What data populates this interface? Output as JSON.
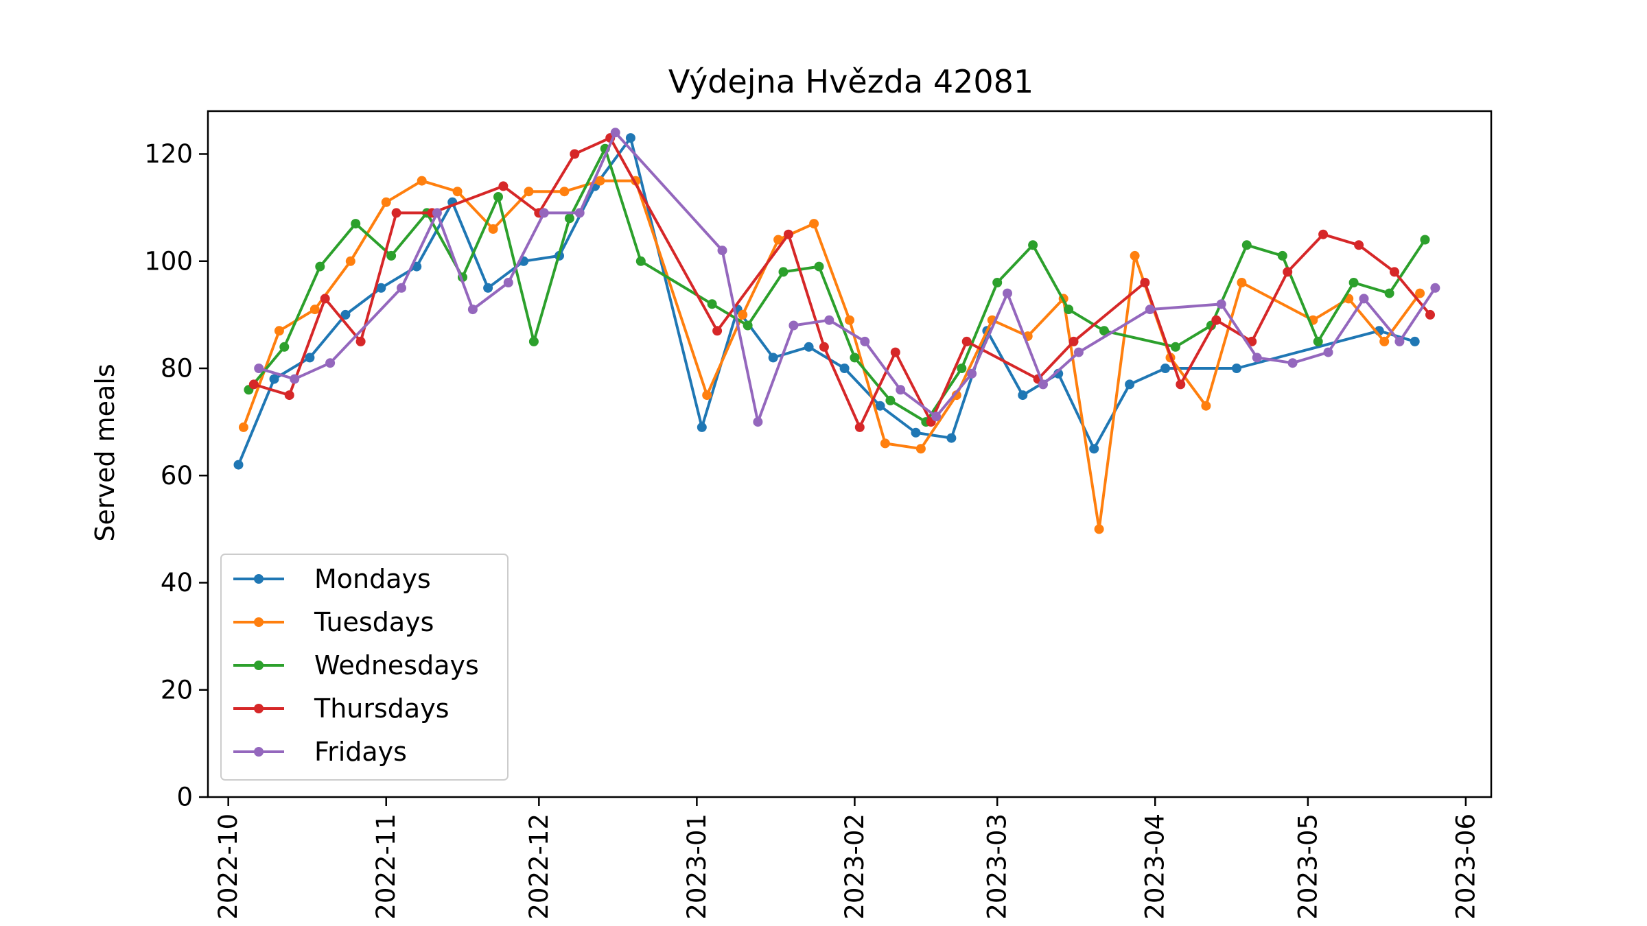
{
  "chart_data": {
    "type": "line",
    "title": "Výdejna Hvězda 42081",
    "xlabel": "",
    "ylabel": "Served meals",
    "xlim": [
      "2022-09-27",
      "2023-06-06"
    ],
    "ylim": [
      0,
      128
    ],
    "x_ticks": [
      "2022-10",
      "2022-11",
      "2022-12",
      "2023-01",
      "2023-02",
      "2023-03",
      "2023-04",
      "2023-05",
      "2023-06"
    ],
    "x_tick_dates": [
      "2022-10-01",
      "2022-11-01",
      "2022-12-01",
      "2023-01-01",
      "2023-02-01",
      "2023-03-01",
      "2023-04-01",
      "2023-05-01",
      "2023-06-01"
    ],
    "y_ticks": [
      0,
      20,
      40,
      60,
      80,
      100,
      120
    ],
    "grid": false,
    "legend_position": "lower-left",
    "series": [
      {
        "name": "Mondays",
        "color": "#1f77b4",
        "points": [
          [
            "2022-10-03",
            62
          ],
          [
            "2022-10-10",
            78
          ],
          [
            "2022-10-17",
            82
          ],
          [
            "2022-10-24",
            90
          ],
          [
            "2022-10-31",
            95
          ],
          [
            "2022-11-07",
            99
          ],
          [
            "2022-11-14",
            111
          ],
          [
            "2022-11-21",
            95
          ],
          [
            "2022-11-28",
            100
          ],
          [
            "2022-12-05",
            101
          ],
          [
            "2022-12-12",
            114
          ],
          [
            "2022-12-19",
            123
          ],
          [
            "2023-01-02",
            69
          ],
          [
            "2023-01-09",
            91
          ],
          [
            "2023-01-16",
            82
          ],
          [
            "2023-01-23",
            84
          ],
          [
            "2023-01-30",
            80
          ],
          [
            "2023-02-06",
            73
          ],
          [
            "2023-02-13",
            68
          ],
          [
            "2023-02-20",
            67
          ],
          [
            "2023-02-27",
            87
          ],
          [
            "2023-03-06",
            75
          ],
          [
            "2023-03-13",
            79
          ],
          [
            "2023-03-20",
            65
          ],
          [
            "2023-03-27",
            77
          ],
          [
            "2023-04-03",
            80
          ],
          [
            "2023-04-17",
            80
          ],
          [
            "2023-05-15",
            87
          ],
          [
            "2023-05-22",
            85
          ]
        ]
      },
      {
        "name": "Tuesdays",
        "color": "#ff7f0e",
        "points": [
          [
            "2022-10-04",
            69
          ],
          [
            "2022-10-11",
            87
          ],
          [
            "2022-10-18",
            91
          ],
          [
            "2022-10-25",
            100
          ],
          [
            "2022-11-01",
            111
          ],
          [
            "2022-11-08",
            115
          ],
          [
            "2022-11-15",
            113
          ],
          [
            "2022-11-22",
            106
          ],
          [
            "2022-11-29",
            113
          ],
          [
            "2022-12-06",
            113
          ],
          [
            "2022-12-13",
            115
          ],
          [
            "2022-12-20",
            115
          ],
          [
            "2023-01-03",
            75
          ],
          [
            "2023-01-10",
            90
          ],
          [
            "2023-01-17",
            104
          ],
          [
            "2023-01-24",
            107
          ],
          [
            "2023-01-31",
            89
          ],
          [
            "2023-02-07",
            66
          ],
          [
            "2023-02-14",
            65
          ],
          [
            "2023-02-21",
            75
          ],
          [
            "2023-02-28",
            89
          ],
          [
            "2023-03-07",
            86
          ],
          [
            "2023-03-14",
            93
          ],
          [
            "2023-03-21",
            50
          ],
          [
            "2023-03-28",
            101
          ],
          [
            "2023-04-04",
            82
          ],
          [
            "2023-04-11",
            73
          ],
          [
            "2023-04-18",
            96
          ],
          [
            "2023-05-02",
            89
          ],
          [
            "2023-05-09",
            93
          ],
          [
            "2023-05-16",
            85
          ],
          [
            "2023-05-23",
            94
          ]
        ]
      },
      {
        "name": "Wednesdays",
        "color": "#2ca02c",
        "points": [
          [
            "2022-10-05",
            76
          ],
          [
            "2022-10-12",
            84
          ],
          [
            "2022-10-19",
            99
          ],
          [
            "2022-10-26",
            107
          ],
          [
            "2022-11-02",
            101
          ],
          [
            "2022-11-09",
            109
          ],
          [
            "2022-11-16",
            97
          ],
          [
            "2022-11-23",
            112
          ],
          [
            "2022-11-30",
            85
          ],
          [
            "2022-12-07",
            108
          ],
          [
            "2022-12-14",
            121
          ],
          [
            "2022-12-21",
            100
          ],
          [
            "2023-01-04",
            92
          ],
          [
            "2023-01-11",
            88
          ],
          [
            "2023-01-18",
            98
          ],
          [
            "2023-01-25",
            99
          ],
          [
            "2023-02-01",
            82
          ],
          [
            "2023-02-08",
            74
          ],
          [
            "2023-02-15",
            70
          ],
          [
            "2023-02-22",
            80
          ],
          [
            "2023-03-01",
            96
          ],
          [
            "2023-03-08",
            103
          ],
          [
            "2023-03-15",
            91
          ],
          [
            "2023-03-22",
            87
          ],
          [
            "2023-04-05",
            84
          ],
          [
            "2023-04-12",
            88
          ],
          [
            "2023-04-19",
            103
          ],
          [
            "2023-04-26",
            101
          ],
          [
            "2023-05-03",
            85
          ],
          [
            "2023-05-10",
            96
          ],
          [
            "2023-05-17",
            94
          ],
          [
            "2023-05-24",
            104
          ]
        ]
      },
      {
        "name": "Thursdays",
        "color": "#d62728",
        "points": [
          [
            "2022-10-06",
            77
          ],
          [
            "2022-10-13",
            75
          ],
          [
            "2022-10-20",
            93
          ],
          [
            "2022-10-27",
            85
          ],
          [
            "2022-11-03",
            109
          ],
          [
            "2022-11-10",
            109
          ],
          [
            "2022-11-24",
            114
          ],
          [
            "2022-12-01",
            109
          ],
          [
            "2022-12-08",
            120
          ],
          [
            "2022-12-15",
            123
          ],
          [
            "2023-01-05",
            87
          ],
          [
            "2023-01-19",
            105
          ],
          [
            "2023-01-26",
            84
          ],
          [
            "2023-02-02",
            69
          ],
          [
            "2023-02-09",
            83
          ],
          [
            "2023-02-16",
            70
          ],
          [
            "2023-02-23",
            85
          ],
          [
            "2023-03-09",
            78
          ],
          [
            "2023-03-16",
            85
          ],
          [
            "2023-03-30",
            96
          ],
          [
            "2023-04-06",
            77
          ],
          [
            "2023-04-13",
            89
          ],
          [
            "2023-04-20",
            85
          ],
          [
            "2023-04-27",
            98
          ],
          [
            "2023-05-04",
            105
          ],
          [
            "2023-05-11",
            103
          ],
          [
            "2023-05-18",
            98
          ],
          [
            "2023-05-25",
            90
          ]
        ]
      },
      {
        "name": "Fridays",
        "color": "#9467bd",
        "points": [
          [
            "2022-10-07",
            80
          ],
          [
            "2022-10-14",
            78
          ],
          [
            "2022-10-21",
            81
          ],
          [
            "2022-11-04",
            95
          ],
          [
            "2022-11-11",
            109
          ],
          [
            "2022-11-18",
            91
          ],
          [
            "2022-11-25",
            96
          ],
          [
            "2022-12-02",
            109
          ],
          [
            "2022-12-09",
            109
          ],
          [
            "2022-12-16",
            124
          ],
          [
            "2023-01-06",
            102
          ],
          [
            "2023-01-13",
            70
          ],
          [
            "2023-01-20",
            88
          ],
          [
            "2023-01-27",
            89
          ],
          [
            "2023-02-03",
            85
          ],
          [
            "2023-02-10",
            76
          ],
          [
            "2023-02-17",
            71
          ],
          [
            "2023-02-24",
            79
          ],
          [
            "2023-03-03",
            94
          ],
          [
            "2023-03-10",
            77
          ],
          [
            "2023-03-17",
            83
          ],
          [
            "2023-03-31",
            91
          ],
          [
            "2023-04-14",
            92
          ],
          [
            "2023-04-21",
            82
          ],
          [
            "2023-04-28",
            81
          ],
          [
            "2023-05-05",
            83
          ],
          [
            "2023-05-12",
            93
          ],
          [
            "2023-05-19",
            85
          ],
          [
            "2023-05-26",
            95
          ]
        ]
      }
    ]
  }
}
